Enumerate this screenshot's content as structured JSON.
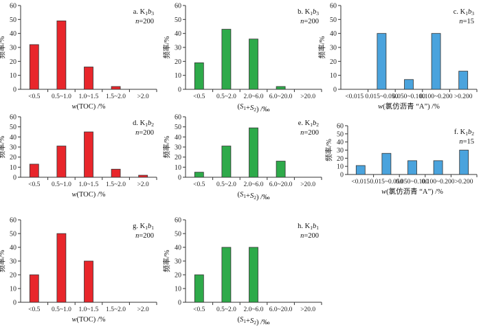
{
  "colors": {
    "red": "#e8262b",
    "green": "#2eaa4a",
    "blue": "#4aa3dd",
    "edge": "#333333"
  },
  "chart_data": [
    {
      "type": "bar",
      "panel": "a",
      "color": "red",
      "label_prefix": "a. K",
      "label_sub1": "1",
      "label_mid": "b",
      "label_sub2": "3",
      "n_label": "n",
      "n_value": "=200",
      "categories": [
        "<0.5",
        "0.5~1.0",
        "1.0~1.5",
        "1.5~2.0",
        ">2.0"
      ],
      "values": [
        32,
        49,
        16,
        2,
        0
      ],
      "xlabel_parts": [
        {
          "t": "w",
          "i": true
        },
        {
          "t": "(TOC) /%"
        }
      ],
      "ylabel": "频率/%",
      "ylim": [
        0,
        60
      ],
      "yticks": [
        0,
        10,
        20,
        30,
        40,
        50,
        60
      ]
    },
    {
      "type": "bar",
      "panel": "b",
      "color": "green",
      "label_prefix": "b. K",
      "label_sub1": "1",
      "label_mid": "b",
      "label_sub2": "3",
      "n_label": "n",
      "n_value": "=200",
      "categories": [
        "<0.5",
        "0.5~2.0",
        "2.0~6.0",
        "6.0~20.0",
        ">20.0"
      ],
      "values": [
        19,
        43,
        36,
        2,
        0
      ],
      "xlabel_parts": [
        {
          "t": "("
        },
        {
          "t": "S",
          "i": true
        },
        {
          "t": "1",
          "sub": true
        },
        {
          "t": "+"
        },
        {
          "t": "S",
          "i": true
        },
        {
          "t": "2",
          "sub": true
        },
        {
          "t": ") /‰"
        }
      ],
      "ylabel": "频率/%",
      "ylim": [
        0,
        60
      ],
      "yticks": [
        0,
        10,
        20,
        30,
        40,
        50,
        60
      ]
    },
    {
      "type": "bar",
      "panel": "c",
      "color": "blue",
      "label_prefix": "c. K",
      "label_sub1": "1",
      "label_mid": "b",
      "label_sub2": "3",
      "n_label": "n",
      "n_value": "=15",
      "categories": [
        "<0.015",
        "0.015~0.050",
        "0.050~0.100",
        "0.100~0.200",
        ">0.200"
      ],
      "values": [
        0,
        40,
        7,
        40,
        13
      ],
      "xlabel_parts": [
        {
          "t": "w",
          "i": true
        },
        {
          "t": "(氯仿沥青 “A”) /%"
        }
      ],
      "ylabel": "频率/%",
      "ylim": [
        0,
        60
      ],
      "yticks": [
        0,
        10,
        20,
        30,
        40,
        50,
        60
      ]
    },
    {
      "type": "bar",
      "panel": "d",
      "color": "red",
      "label_prefix": "d. K",
      "label_sub1": "1",
      "label_mid": "b",
      "label_sub2": "2",
      "n_label": "n",
      "n_value": "=200",
      "categories": [
        "<0.5",
        "0.5~1.0",
        "1.0~1.5",
        "1.5~2.0",
        ">2.0"
      ],
      "values": [
        13,
        31,
        45,
        8,
        2
      ],
      "xlabel_parts": [
        {
          "t": "w",
          "i": true
        },
        {
          "t": "(TOC) /%"
        }
      ],
      "ylabel": "频率/%",
      "ylim": [
        0,
        60
      ],
      "yticks": [
        0,
        10,
        20,
        30,
        40,
        50,
        60
      ]
    },
    {
      "type": "bar",
      "panel": "e",
      "color": "green",
      "label_prefix": "e. K",
      "label_sub1": "1",
      "label_mid": "b",
      "label_sub2": "2",
      "n_label": "n",
      "n_value": "=200",
      "categories": [
        "<0.5",
        "0.5~2.0",
        "2.0~6.0",
        "6.0~20.0",
        ">20.0"
      ],
      "values": [
        5,
        31,
        49,
        16,
        0
      ],
      "xlabel_parts": [
        {
          "t": "("
        },
        {
          "t": "S",
          "i": true
        },
        {
          "t": "1",
          "sub": true
        },
        {
          "t": "+"
        },
        {
          "t": "S",
          "i": true
        },
        {
          "t": "2",
          "sub": true
        },
        {
          "t": ") /‰"
        }
      ],
      "ylabel": "频率/%",
      "ylim": [
        0,
        60
      ],
      "yticks": [
        0,
        10,
        20,
        30,
        40,
        50,
        60
      ]
    },
    {
      "type": "bar",
      "panel": "f",
      "color": "blue",
      "label_prefix": "f. K",
      "label_sub1": "1",
      "label_mid": "b",
      "label_sub2": "2",
      "n_label": "n",
      "n_value": "=15",
      "categories": [
        "<0.015",
        "0.015~0.050",
        "0.050~0.100",
        "0.100~0.200",
        ">0.200"
      ],
      "values": [
        11,
        26,
        17,
        17,
        30
      ],
      "xlabel_parts": [
        {
          "t": "w",
          "i": true
        },
        {
          "t": "(氯仿沥青 “A”) /%"
        }
      ],
      "ylabel": "频率/%",
      "ylim": [
        0,
        60
      ],
      "yticks": [
        0,
        10,
        20,
        30,
        40,
        50,
        60
      ]
    },
    {
      "type": "bar",
      "panel": "g",
      "color": "red",
      "label_prefix": "g. K",
      "label_sub1": "1",
      "label_mid": "b",
      "label_sub2": "1",
      "n_label": "n",
      "n_value": "=200",
      "categories": [
        "<0.5",
        "0.5~1.0",
        "1.0~1.5",
        "1.5~2.0",
        ">2.0"
      ],
      "values": [
        20,
        50,
        30,
        0,
        0
      ],
      "xlabel_parts": [
        {
          "t": "w",
          "i": true
        },
        {
          "t": "(TOC) /%"
        }
      ],
      "ylabel": "频率/%",
      "ylim": [
        0,
        60
      ],
      "yticks": [
        0,
        10,
        20,
        30,
        40,
        50,
        60
      ]
    },
    {
      "type": "bar",
      "panel": "h",
      "color": "green",
      "label_prefix": "h. K",
      "label_sub1": "1",
      "label_mid": "b",
      "label_sub2": "1",
      "n_label": "n",
      "n_value": "=200",
      "categories": [
        "<0.5",
        "0.5~2.0",
        "2.0~6.0",
        "6.0~20.0",
        ">20.0"
      ],
      "values": [
        20,
        40,
        40,
        0,
        0
      ],
      "xlabel_parts": [
        {
          "t": "("
        },
        {
          "t": "S",
          "i": true
        },
        {
          "t": "1",
          "sub": true
        },
        {
          "t": "+"
        },
        {
          "t": "S",
          "i": true
        },
        {
          "t": "2",
          "sub": true
        },
        {
          "t": ") /‰"
        }
      ],
      "ylabel": "频率/%",
      "ylim": [
        0,
        60
      ],
      "yticks": [
        0,
        10,
        20,
        30,
        40,
        50,
        60
      ]
    }
  ]
}
